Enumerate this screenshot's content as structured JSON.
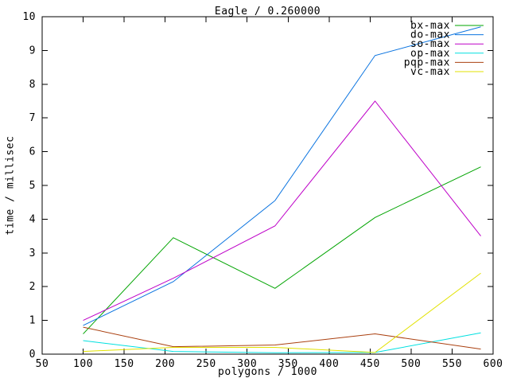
{
  "chart_data": {
    "type": "line",
    "title": "Eagle / 0.260000",
    "xlabel": "polygons / 1000",
    "ylabel": "time / millisec",
    "xlim": [
      50,
      600
    ],
    "ylim": [
      0,
      10
    ],
    "x_ticks": [
      50,
      100,
      150,
      200,
      250,
      300,
      350,
      400,
      450,
      500,
      550,
      600
    ],
    "y_ticks": [
      0,
      1,
      2,
      3,
      4,
      5,
      6,
      7,
      8,
      9,
      10
    ],
    "grid": false,
    "legend_position": "top-right-inside",
    "x": [
      100,
      210,
      334,
      456,
      585
    ],
    "series": [
      {
        "name": "bx-max",
        "color": "#00a400",
        "values": [
          0.6,
          3.45,
          1.95,
          4.05,
          5.55
        ]
      },
      {
        "name": "do-max",
        "color": "#0b74e0",
        "values": [
          0.85,
          2.15,
          4.55,
          8.85,
          9.7
        ]
      },
      {
        "name": "so-max",
        "color": "#be00c8",
        "values": [
          1.0,
          2.25,
          3.8,
          7.5,
          3.5
        ]
      },
      {
        "name": "op-max",
        "color": "#00e0e0",
        "values": [
          0.4,
          0.08,
          0.04,
          0.05,
          0.63
        ]
      },
      {
        "name": "pqp-max",
        "color": "#aa4010",
        "values": [
          0.8,
          0.22,
          0.27,
          0.6,
          0.15
        ]
      },
      {
        "name": "vc-max",
        "color": "#e2e200",
        "values": [
          0.08,
          0.2,
          0.2,
          0.05,
          2.4
        ]
      }
    ],
    "colors": {
      "background": "#ffffff",
      "axis": "#000000",
      "text": "#000000"
    }
  }
}
